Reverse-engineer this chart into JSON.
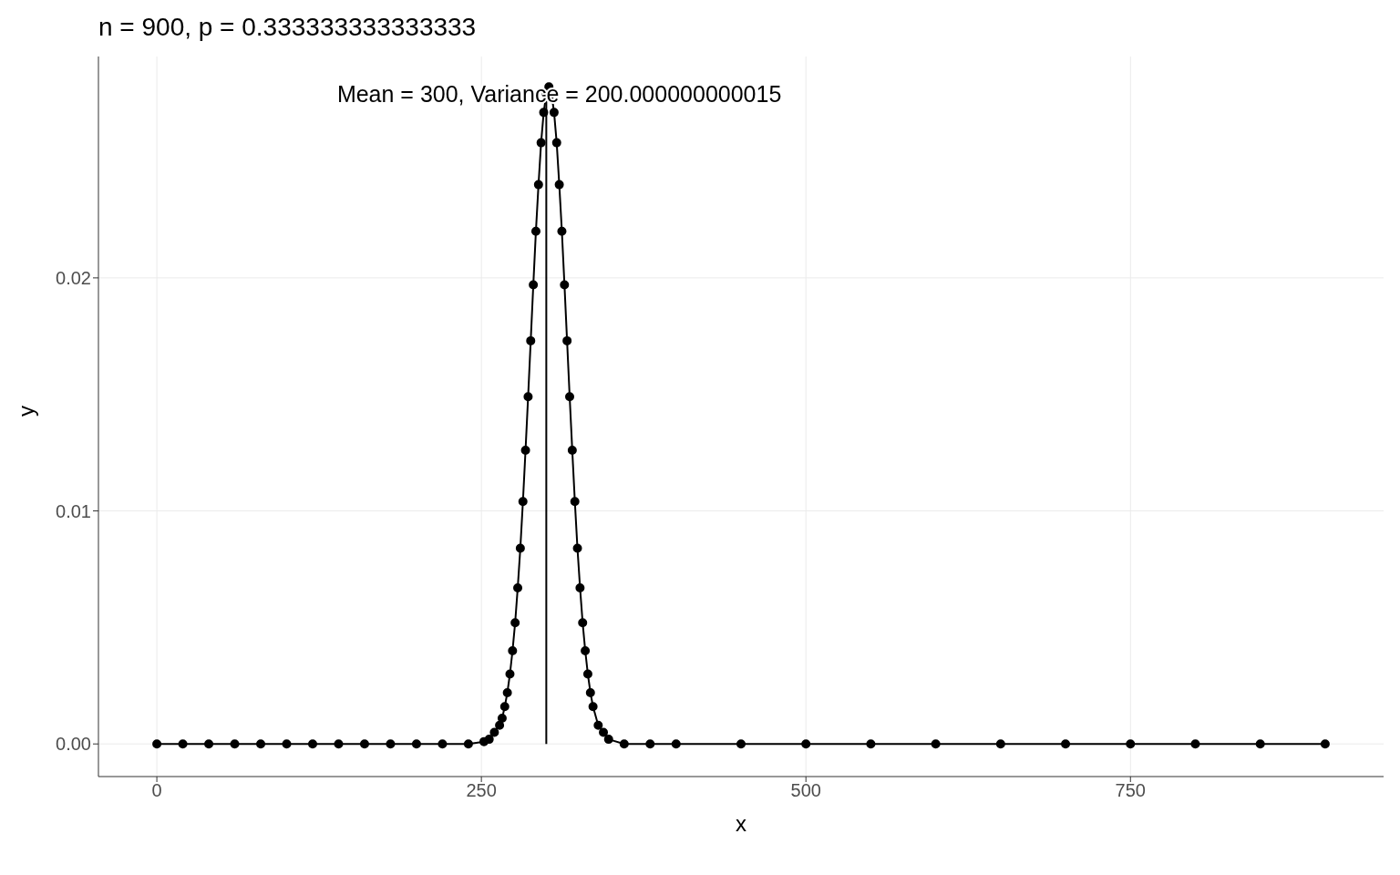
{
  "chart_data": {
    "type": "line",
    "title": "n = 900, p = 0.333333333333333",
    "xlabel": "x",
    "ylabel": "y",
    "xlim": [
      -45,
      945
    ],
    "xticks": [
      0,
      250,
      500,
      750
    ],
    "ylim": [
      -0.0014,
      0.0295
    ],
    "yticks": [
      {
        "value": 0,
        "label": "0.00"
      },
      {
        "value": 0.01,
        "label": "0.01"
      },
      {
        "value": 0.02,
        "label": "0.02"
      }
    ],
    "grid": true,
    "marker": "circle",
    "line_style": "solid",
    "annotations": [
      {
        "text": "Mean = 300, Variance = 200.000000000015",
        "x": 310,
        "y": 0.0279
      }
    ],
    "series": [
      {
        "color": "#000000",
        "x": [
          0,
          20,
          40,
          60,
          80,
          100,
          120,
          140,
          160,
          180,
          200,
          220,
          240,
          252,
          256,
          260,
          264,
          266,
          268,
          270,
          272,
          274,
          276,
          278,
          280,
          282,
          284,
          286,
          288,
          290,
          292,
          294,
          296,
          298,
          300,
          302,
          304,
          306,
          308,
          310,
          312,
          314,
          316,
          318,
          320,
          322,
          324,
          326,
          328,
          330,
          332,
          334,
          336,
          340,
          344,
          348,
          360,
          380,
          400,
          450,
          500,
          550,
          600,
          650,
          700,
          750,
          800,
          850,
          900
        ],
        "values": [
          0,
          0,
          0,
          0,
          0,
          0,
          0,
          0,
          0,
          0,
          0,
          0,
          0,
          0.0001,
          0.0002,
          0.0005,
          0.0008,
          0.0011,
          0.0016,
          0.0022,
          0.003,
          0.004,
          0.0052,
          0.0067,
          0.0084,
          0.0104,
          0.0126,
          0.0149,
          0.0173,
          0.0197,
          0.022,
          0.024,
          0.0258,
          0.0271,
          0.0279,
          0.0282,
          0.0279,
          0.0271,
          0.0258,
          0.024,
          0.022,
          0.0197,
          0.0173,
          0.0149,
          0.0126,
          0.0104,
          0.0084,
          0.0067,
          0.0052,
          0.004,
          0.003,
          0.0022,
          0.0016,
          0.0008,
          0.0005,
          0.0002,
          0,
          0,
          0,
          0,
          0,
          0,
          0,
          0,
          0,
          0,
          0,
          0,
          0
        ]
      },
      {
        "color": "#000000",
        "marker": "none",
        "x": [
          300,
          300
        ],
        "values": [
          0,
          0.0282
        ]
      }
    ]
  }
}
